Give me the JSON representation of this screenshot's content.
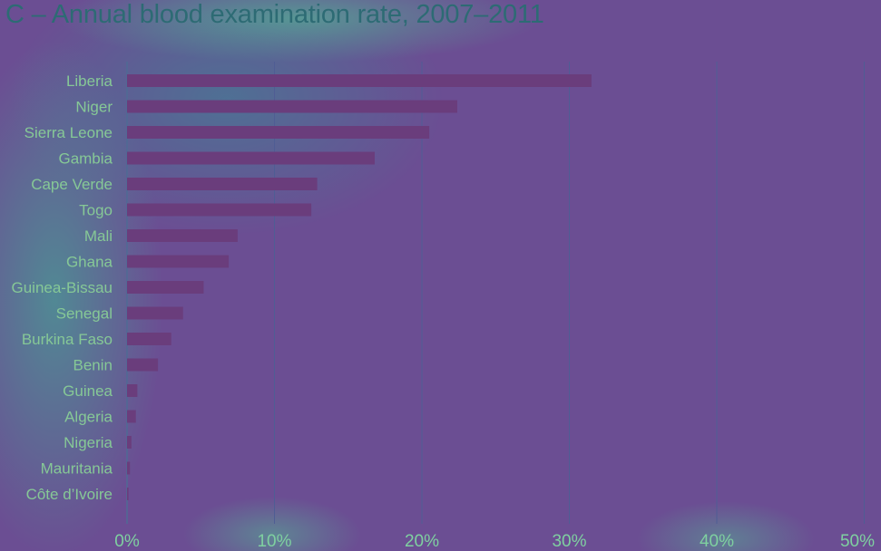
{
  "chart_data": {
    "type": "bar",
    "orientation": "horizontal",
    "title": "C – Annual blood examination rate, 2007–2011",
    "categories": [
      "Liberia",
      "Niger",
      "Sierra Leone",
      "Gambia",
      "Cape Verde",
      "Togo",
      "Mali",
      "Ghana",
      "Guinea-Bissau",
      "Senegal",
      "Burkina Faso",
      "Benin",
      "Guinea",
      "Algeria",
      "Nigeria",
      "Mauritania",
      "Côte d’Ivoire"
    ],
    "values": [
      31.5,
      22.4,
      20.5,
      16.8,
      12.9,
      12.5,
      7.5,
      6.9,
      5.2,
      3.8,
      3.0,
      2.1,
      0.7,
      0.6,
      0.3,
      0.2,
      0.1
    ],
    "xlim": [
      0,
      50
    ],
    "xticks": [
      "0%",
      "10%",
      "20%",
      "30%",
      "40%",
      "50%"
    ],
    "grid": true,
    "legend": "none",
    "colors": {
      "bar": "#6a3d7c",
      "background": "#6b4e93",
      "text": "#86c896"
    }
  }
}
